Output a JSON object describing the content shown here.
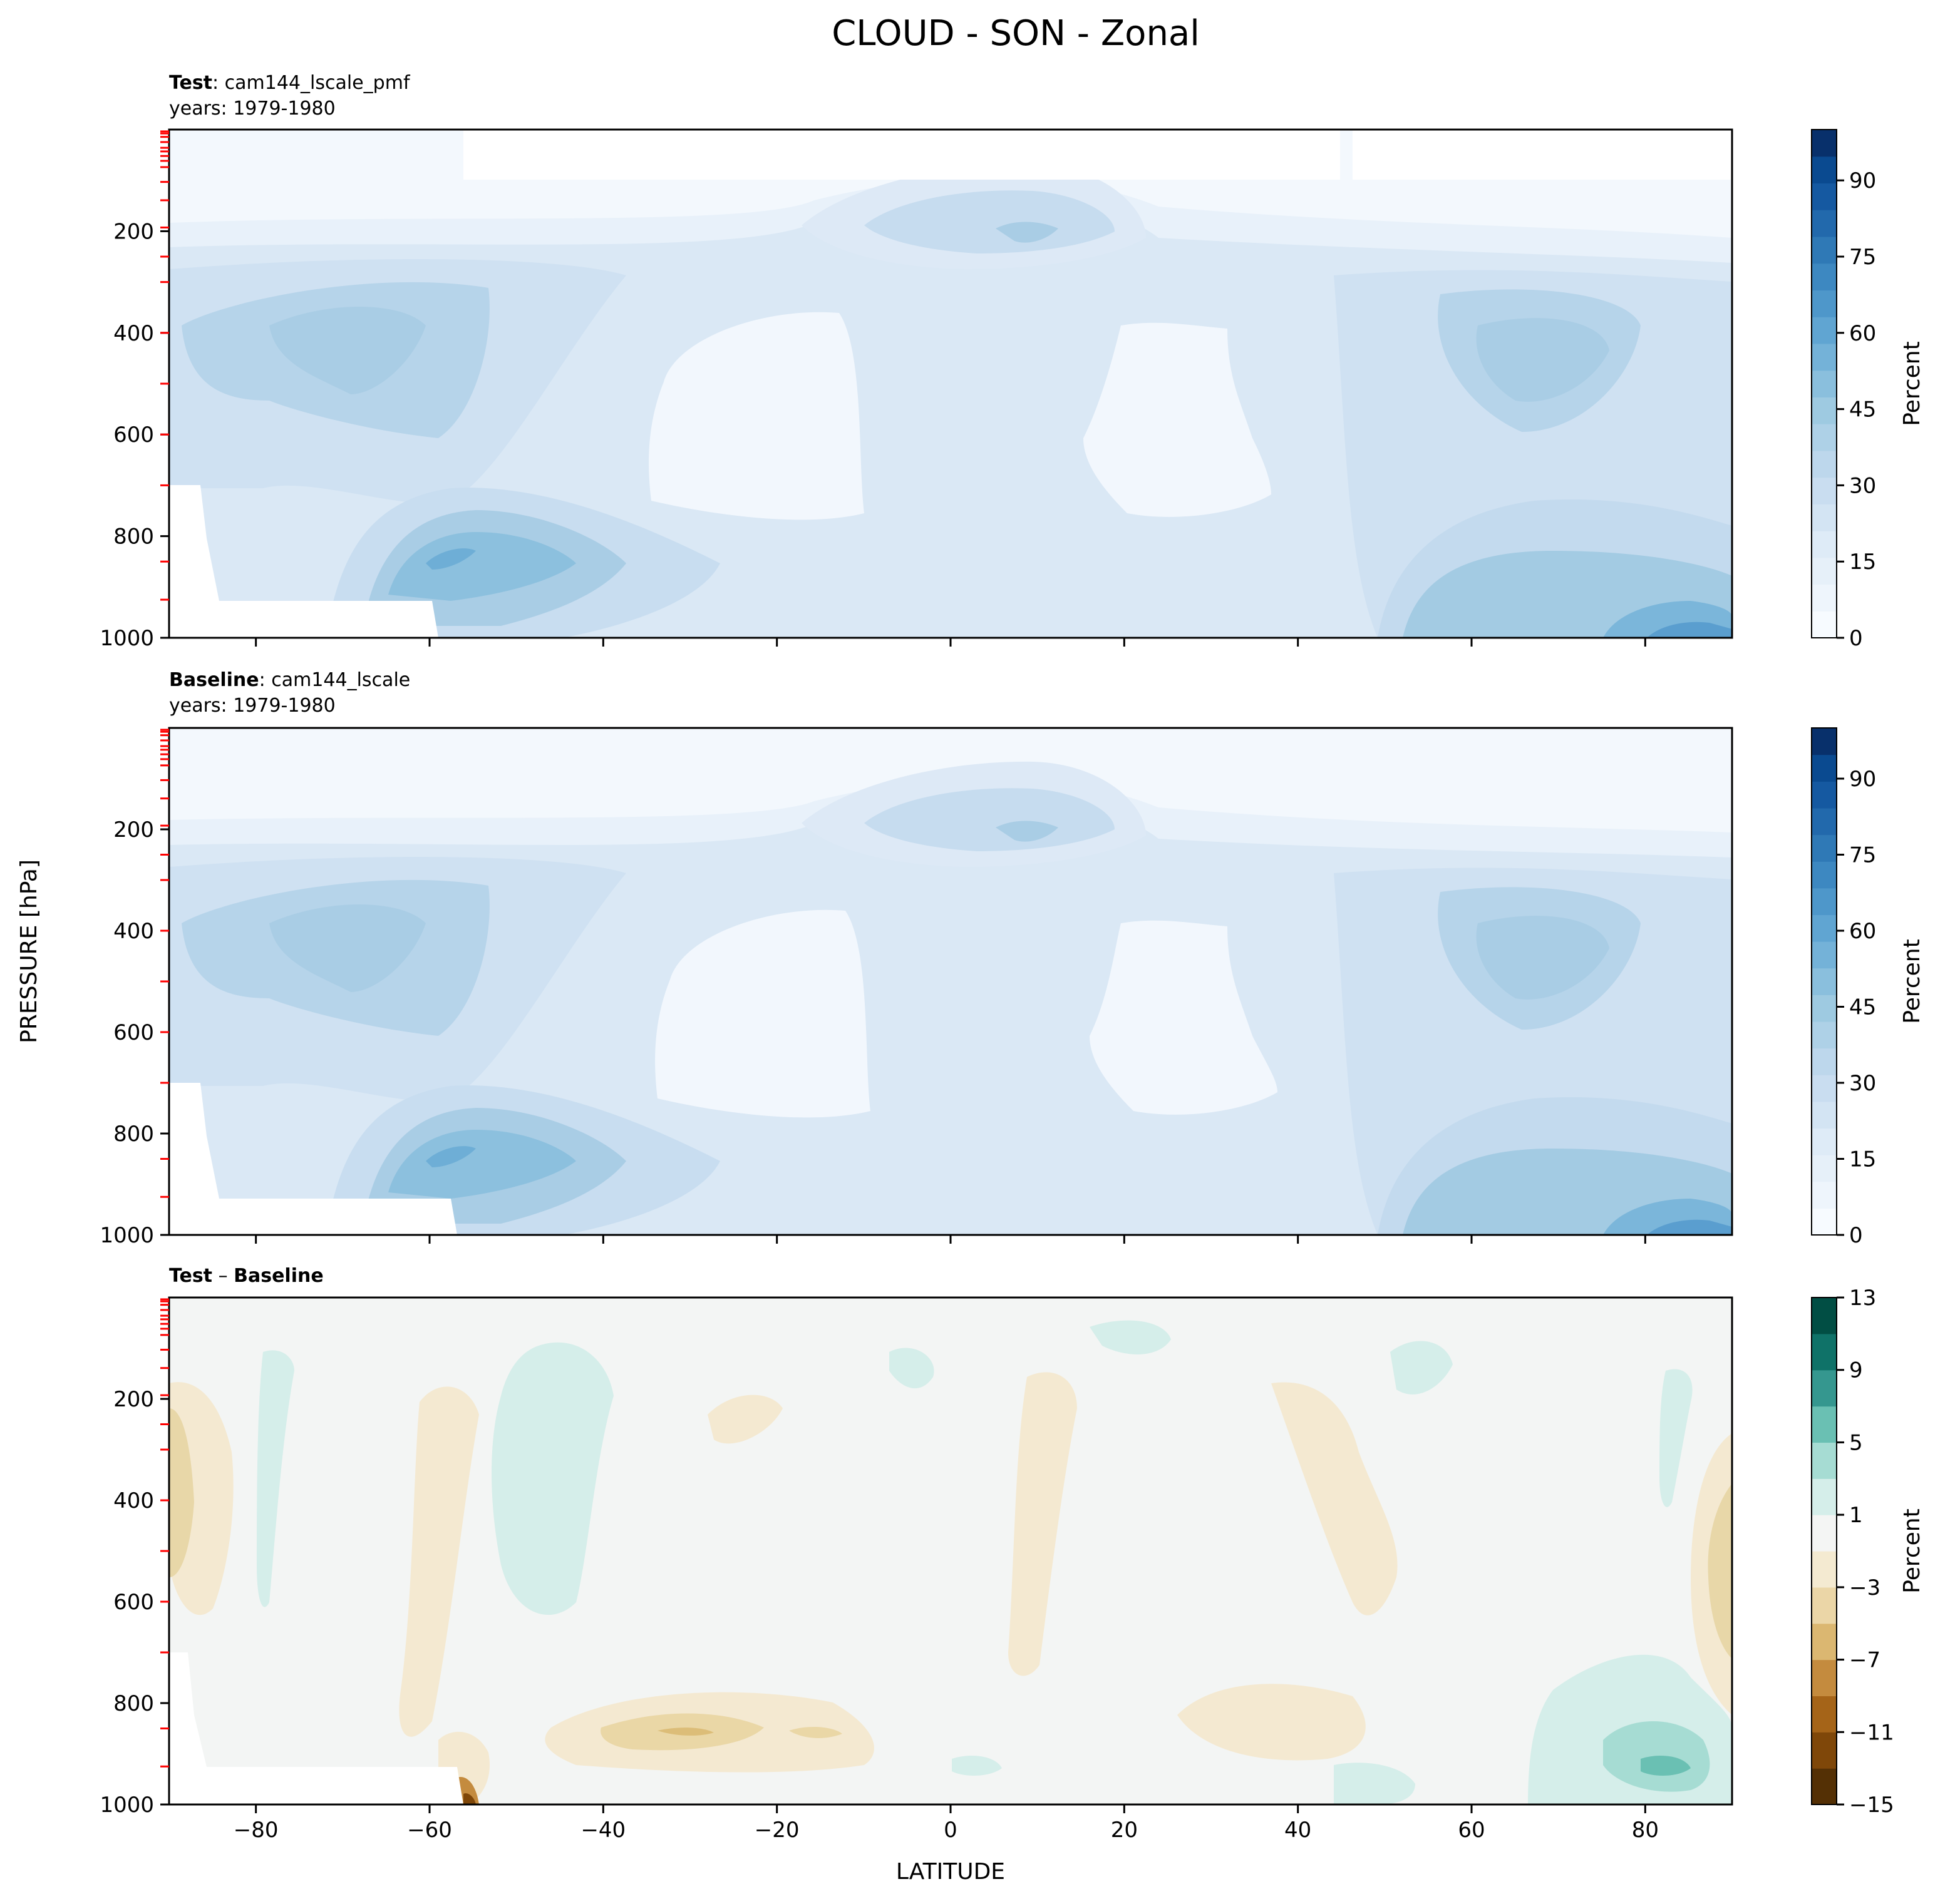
{
  "figure": {
    "title": "CLOUD - SON - Zonal",
    "ylabel": "PRESSURE [hPa]",
    "xlabel": "LATITUDE"
  },
  "colors": {
    "blues": [
      "#f7fbff",
      "#eef5fc",
      "#e6f0f9",
      "#deebf7",
      "#d3e4f3",
      "#c9ddf0",
      "#bdd7ec",
      "#aed1e7",
      "#9ecae1",
      "#8abfdd",
      "#74b2d8",
      "#60a5d2",
      "#4e97ca",
      "#3d88c1",
      "#2f79b6",
      "#2269ac",
      "#1559a1",
      "#0a4a90",
      "#08306b"
    ],
    "brbg": [
      "#543005",
      "#7f4709",
      "#a56418",
      "#c48b3e",
      "#dbb771",
      "#ebd6a7",
      "#f4ead1",
      "#f4f5f4",
      "#d5eeea",
      "#a6dcd3",
      "#6ac0b3",
      "#35978f",
      "#0f7268",
      "#014e44",
      "#003c30"
    ],
    "diff_neutral": "#f3f5f4",
    "missing": "#ffffff",
    "pressure_tick": "#ff0000"
  },
  "chart_data": [
    {
      "type": "contour",
      "panel": "test",
      "label_bold": "Test",
      "label_rest": ": cam144_lscale_pmf",
      "years": "years: 1979-1980",
      "xlim": [
        -90,
        90
      ],
      "ylim": [
        1000,
        0
      ],
      "xticks": [
        -80,
        -60,
        -40,
        -20,
        0,
        20,
        40,
        60,
        80
      ],
      "yticks": [
        200,
        400,
        600,
        800,
        1000
      ],
      "colorbar": {
        "label": "Percent",
        "range": [
          0,
          100
        ],
        "ticks": [
          0,
          15,
          30,
          45,
          60,
          75,
          90
        ]
      },
      "pressure_levels": [
        3.6,
        7.6,
        14.4,
        24.6,
        35.9,
        43.0,
        52.0,
        61.6,
        73.9,
        103.0,
        139.1,
        192.7,
        250.0,
        300.0,
        400.0,
        500.0,
        600.0,
        700.0,
        850.0,
        925.0
      ],
      "features": [
        {
          "lat": -72,
          "p": 430,
          "value": 38
        },
        {
          "lat": -58,
          "p": 830,
          "value": 50
        },
        {
          "lat": 8,
          "p": 200,
          "value": 32
        },
        {
          "lat": 70,
          "p": 420,
          "value": 36
        },
        {
          "lat": 85,
          "p": 980,
          "value": 60
        },
        {
          "lat": -28,
          "p": 550,
          "value": 3
        },
        {
          "lat": 30,
          "p": 550,
          "value": 4
        }
      ]
    },
    {
      "type": "contour",
      "panel": "baseline",
      "label_bold": "Baseline",
      "label_rest": ": cam144_lscale",
      "years": "years: 1979-1980",
      "xlim": [
        -90,
        90
      ],
      "ylim": [
        1000,
        0
      ],
      "xticks": [
        -80,
        -60,
        -40,
        -20,
        0,
        20,
        40,
        60,
        80
      ],
      "yticks": [
        200,
        400,
        600,
        800,
        1000
      ],
      "colorbar": {
        "label": "Percent",
        "range": [
          0,
          100
        ],
        "ticks": [
          0,
          15,
          30,
          45,
          60,
          75,
          90
        ]
      },
      "pressure_levels": [
        3.6,
        7.6,
        14.4,
        24.6,
        35.9,
        43.0,
        52.0,
        61.6,
        73.9,
        103.0,
        139.1,
        192.7,
        250.0,
        300.0,
        400.0,
        500.0,
        600.0,
        700.0,
        850.0,
        925.0
      ],
      "features": [
        {
          "lat": -72,
          "p": 430,
          "value": 38
        },
        {
          "lat": -58,
          "p": 830,
          "value": 50
        },
        {
          "lat": 8,
          "p": 200,
          "value": 32
        },
        {
          "lat": 70,
          "p": 420,
          "value": 36
        },
        {
          "lat": 85,
          "p": 980,
          "value": 60
        },
        {
          "lat": -28,
          "p": 550,
          "value": 3
        },
        {
          "lat": 30,
          "p": 550,
          "value": 4
        }
      ]
    },
    {
      "type": "contour",
      "panel": "difference",
      "label_bold": "Test",
      "label_sep": " – ",
      "label_bold2": "Baseline",
      "xlim": [
        -90,
        90
      ],
      "ylim": [
        1000,
        0
      ],
      "xticks": [
        -80,
        -60,
        -40,
        -20,
        0,
        20,
        40,
        60,
        80
      ],
      "yticks": [
        200,
        400,
        600,
        800,
        1000
      ],
      "colorbar": {
        "label": "Percent",
        "levels": [
          -15,
          -13,
          -11,
          -9,
          -7,
          -5,
          -3,
          -1,
          1,
          3,
          5,
          7,
          9,
          11,
          13
        ],
        "tick_labels": [
          "13",
          "9",
          "5",
          "1",
          "−3",
          "−7",
          "−11",
          "−15"
        ]
      },
      "pressure_levels": [
        3.6,
        7.6,
        14.4,
        24.6,
        35.9,
        43.0,
        52.0,
        61.6,
        73.9,
        103.0,
        139.1,
        192.7,
        250.0,
        300.0,
        400.0,
        500.0,
        600.0,
        700.0,
        850.0,
        925.0
      ],
      "features": [
        {
          "lat": -88,
          "p": 350,
          "value": -4
        },
        {
          "lat": -58,
          "p": 980,
          "value": -14
        },
        {
          "lat": -30,
          "p": 850,
          "value": -5
        },
        {
          "lat": -47,
          "p": 450,
          "value": 2
        },
        {
          "lat": 82,
          "p": 880,
          "value": 7
        },
        {
          "lat": 88,
          "p": 500,
          "value": -6
        }
      ]
    }
  ]
}
